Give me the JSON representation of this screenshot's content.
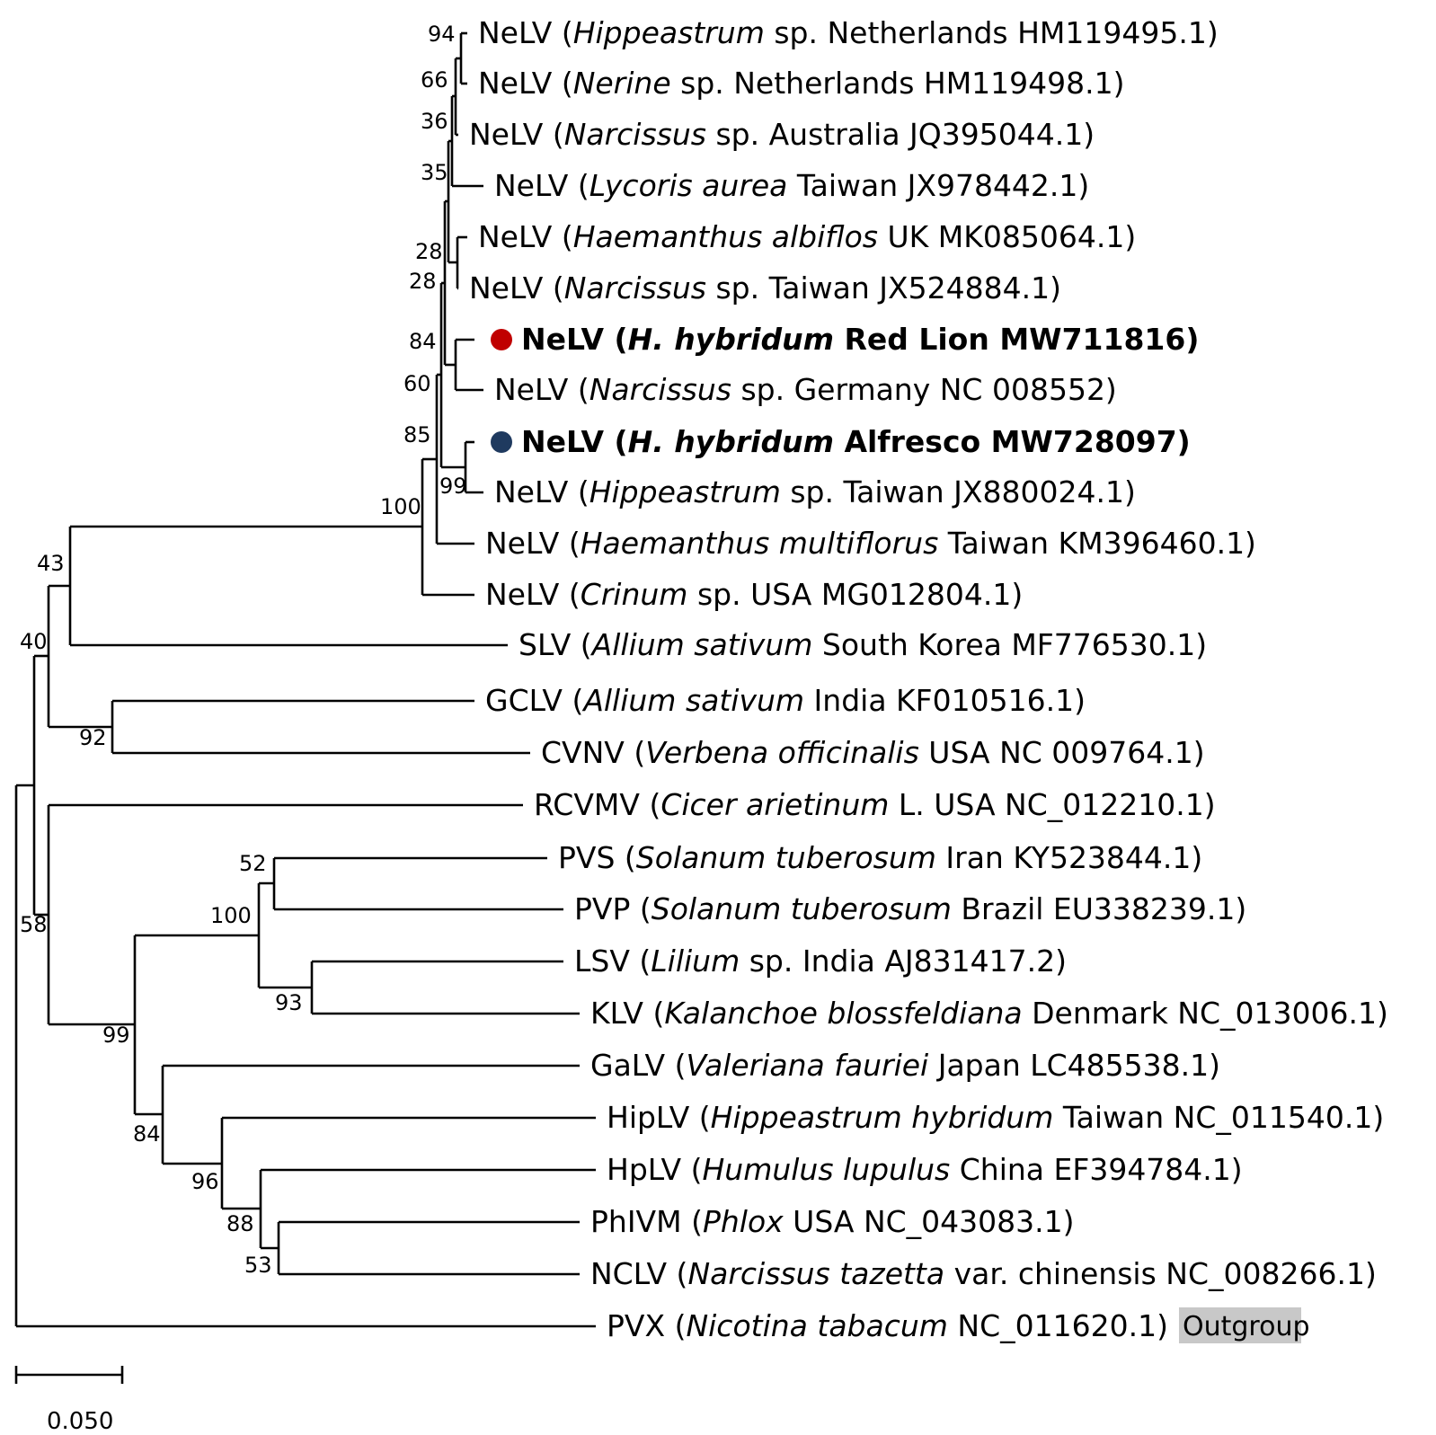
{
  "taxa": [
    {
      "virus": "NeLV",
      "host": "Hippeastrum",
      "rest": " sp. Netherlands HM119495.1)"
    },
    {
      "virus": "NeLV",
      "host": "Nerine",
      "rest": " sp. Netherlands HM119498.1)"
    },
    {
      "virus": "NeLV",
      "host": "Narcissus",
      "rest": " sp. Australia JQ395044.1)"
    },
    {
      "virus": "NeLV",
      "host": "Lycoris aurea",
      "rest": " Taiwan JX978442.1)"
    },
    {
      "virus": "NeLV",
      "host": "Haemanthus albiflos",
      "rest": " UK MK085064.1)"
    },
    {
      "virus": "NeLV",
      "host": "Narcissus",
      "rest": " sp. Taiwan JX524884.1)"
    },
    {
      "virus": "NeLV",
      "host": "H. hybridum",
      "rest": " Red Lion MW711816)",
      "highlight": "red"
    },
    {
      "virus": "NeLV",
      "host": "Narcissus",
      "rest": " sp. Germany NC 008552)"
    },
    {
      "virus": "NeLV",
      "host": "H. hybridum",
      "rest": " Alfresco MW728097)",
      "highlight": "blue"
    },
    {
      "virus": "NeLV",
      "host": "Hippeastrum",
      "rest": " sp. Taiwan JX880024.1)"
    },
    {
      "virus": "NeLV",
      "host": "Haemanthus multiflorus",
      "rest": " Taiwan KM396460.1)"
    },
    {
      "virus": "NeLV",
      "host": "Crinum",
      "rest": " sp. USA MG012804.1)"
    },
    {
      "virus": "SLV",
      "host": "Allium sativum",
      "rest": " South Korea MF776530.1)"
    },
    {
      "virus": "GCLV",
      "host": "Allium sativum",
      "rest": " India KF010516.1)"
    },
    {
      "virus": "CVNV",
      "host": "Verbena officinalis",
      "rest": " USA NC 009764.1)"
    },
    {
      "virus": "RCVMV",
      "host": "Cicer arietinum",
      "rest": " L. USA NC_012210.1)"
    },
    {
      "virus": "PVS",
      "host": "Solanum tuberosum",
      "rest": " Iran KY523844.1)"
    },
    {
      "virus": "PVP",
      "host": "Solanum tuberosum",
      "rest": " Brazil EU338239.1)"
    },
    {
      "virus": "LSV",
      "host": "Lilium",
      "rest": " sp. India AJ831417.2)"
    },
    {
      "virus": "KLV",
      "host": "Kalanchoe blossfeldiana",
      "rest": " Denmark NC_013006.1)"
    },
    {
      "virus": "GaLV",
      "host": "Valeriana fauriei",
      "rest": " Japan LC485538.1)"
    },
    {
      "virus": "HipLV",
      "host": "Hippeastrum hybridum",
      "rest": " Taiwan NC_011540.1)"
    },
    {
      "virus": "HpLV",
      "host": "Humulus lupulus",
      "rest": " China EF394784.1)"
    },
    {
      "virus": "PhIVM",
      "host": "Phlox",
      "rest": " USA NC_043083.1)"
    },
    {
      "virus": "NCLV",
      "host": "Narcissus tazetta",
      "rest": " var. chinensis NC_008266.1)"
    },
    {
      "virus": "PVX",
      "host": "Nicotina tabacum",
      "rest": " NC_011620.1)",
      "outgroup": true
    }
  ],
  "bootstrap": [
    "94",
    "66",
    "36",
    "35",
    "28",
    "28",
    "84",
    "60",
    "85",
    "99",
    "100",
    "43",
    "40",
    "92",
    "52",
    "100",
    "93",
    "58",
    "99",
    "84",
    "96",
    "88",
    "53"
  ],
  "outgroup_label": "Outgroup",
  "scale_label": "0.050",
  "colors": {
    "red": "#c00000",
    "blue": "#1f3a5f",
    "outgroup_bg": "#c8c8c8"
  }
}
